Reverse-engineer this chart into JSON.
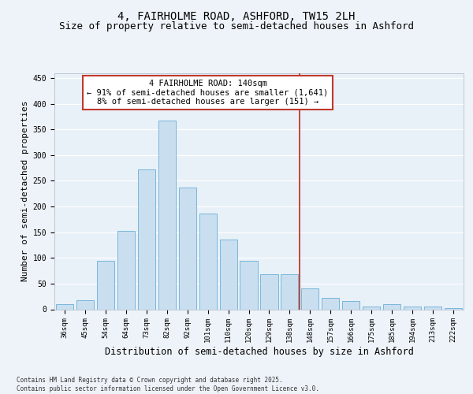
{
  "title1": "4, FAIRHOLME ROAD, ASHFORD, TW15 2LH",
  "title2": "Size of property relative to semi-detached houses in Ashford",
  "xlabel": "Distribution of semi-detached houses by size in Ashford",
  "ylabel": "Number of semi-detached properties",
  "categories": [
    "36sqm",
    "45sqm",
    "54sqm",
    "64sqm",
    "73sqm",
    "82sqm",
    "92sqm",
    "101sqm",
    "110sqm",
    "120sqm",
    "129sqm",
    "138sqm",
    "148sqm",
    "157sqm",
    "166sqm",
    "175sqm",
    "185sqm",
    "194sqm",
    "213sqm",
    "222sqm"
  ],
  "values": [
    10,
    18,
    95,
    152,
    272,
    368,
    237,
    186,
    135,
    95,
    68,
    68,
    40,
    22,
    16,
    6,
    10,
    5,
    5,
    3
  ],
  "bar_color": "#c9dff0",
  "bar_edge_color": "#6aaed6",
  "vline_color": "#c0392b",
  "annotation_text": "4 FAIRHOLME ROAD: 140sqm\n← 91% of semi-detached houses are smaller (1,641)\n8% of semi-detached houses are larger (151) →",
  "annotation_box_color": "#c0392b",
  "ylim": [
    0,
    460
  ],
  "yticks": [
    0,
    50,
    100,
    150,
    200,
    250,
    300,
    350,
    400,
    450
  ],
  "bg_color": "#e8f0f8",
  "grid_color": "#ffffff",
  "fig_bg_color": "#eef3f9",
  "footer_text": "Contains HM Land Registry data © Crown copyright and database right 2025.\nContains public sector information licensed under the Open Government Licence v3.0.",
  "title1_fontsize": 10,
  "title2_fontsize": 9,
  "tick_fontsize": 6.5,
  "ylabel_fontsize": 8,
  "xlabel_fontsize": 8.5,
  "annotation_fontsize": 7.5,
  "footer_fontsize": 5.5
}
